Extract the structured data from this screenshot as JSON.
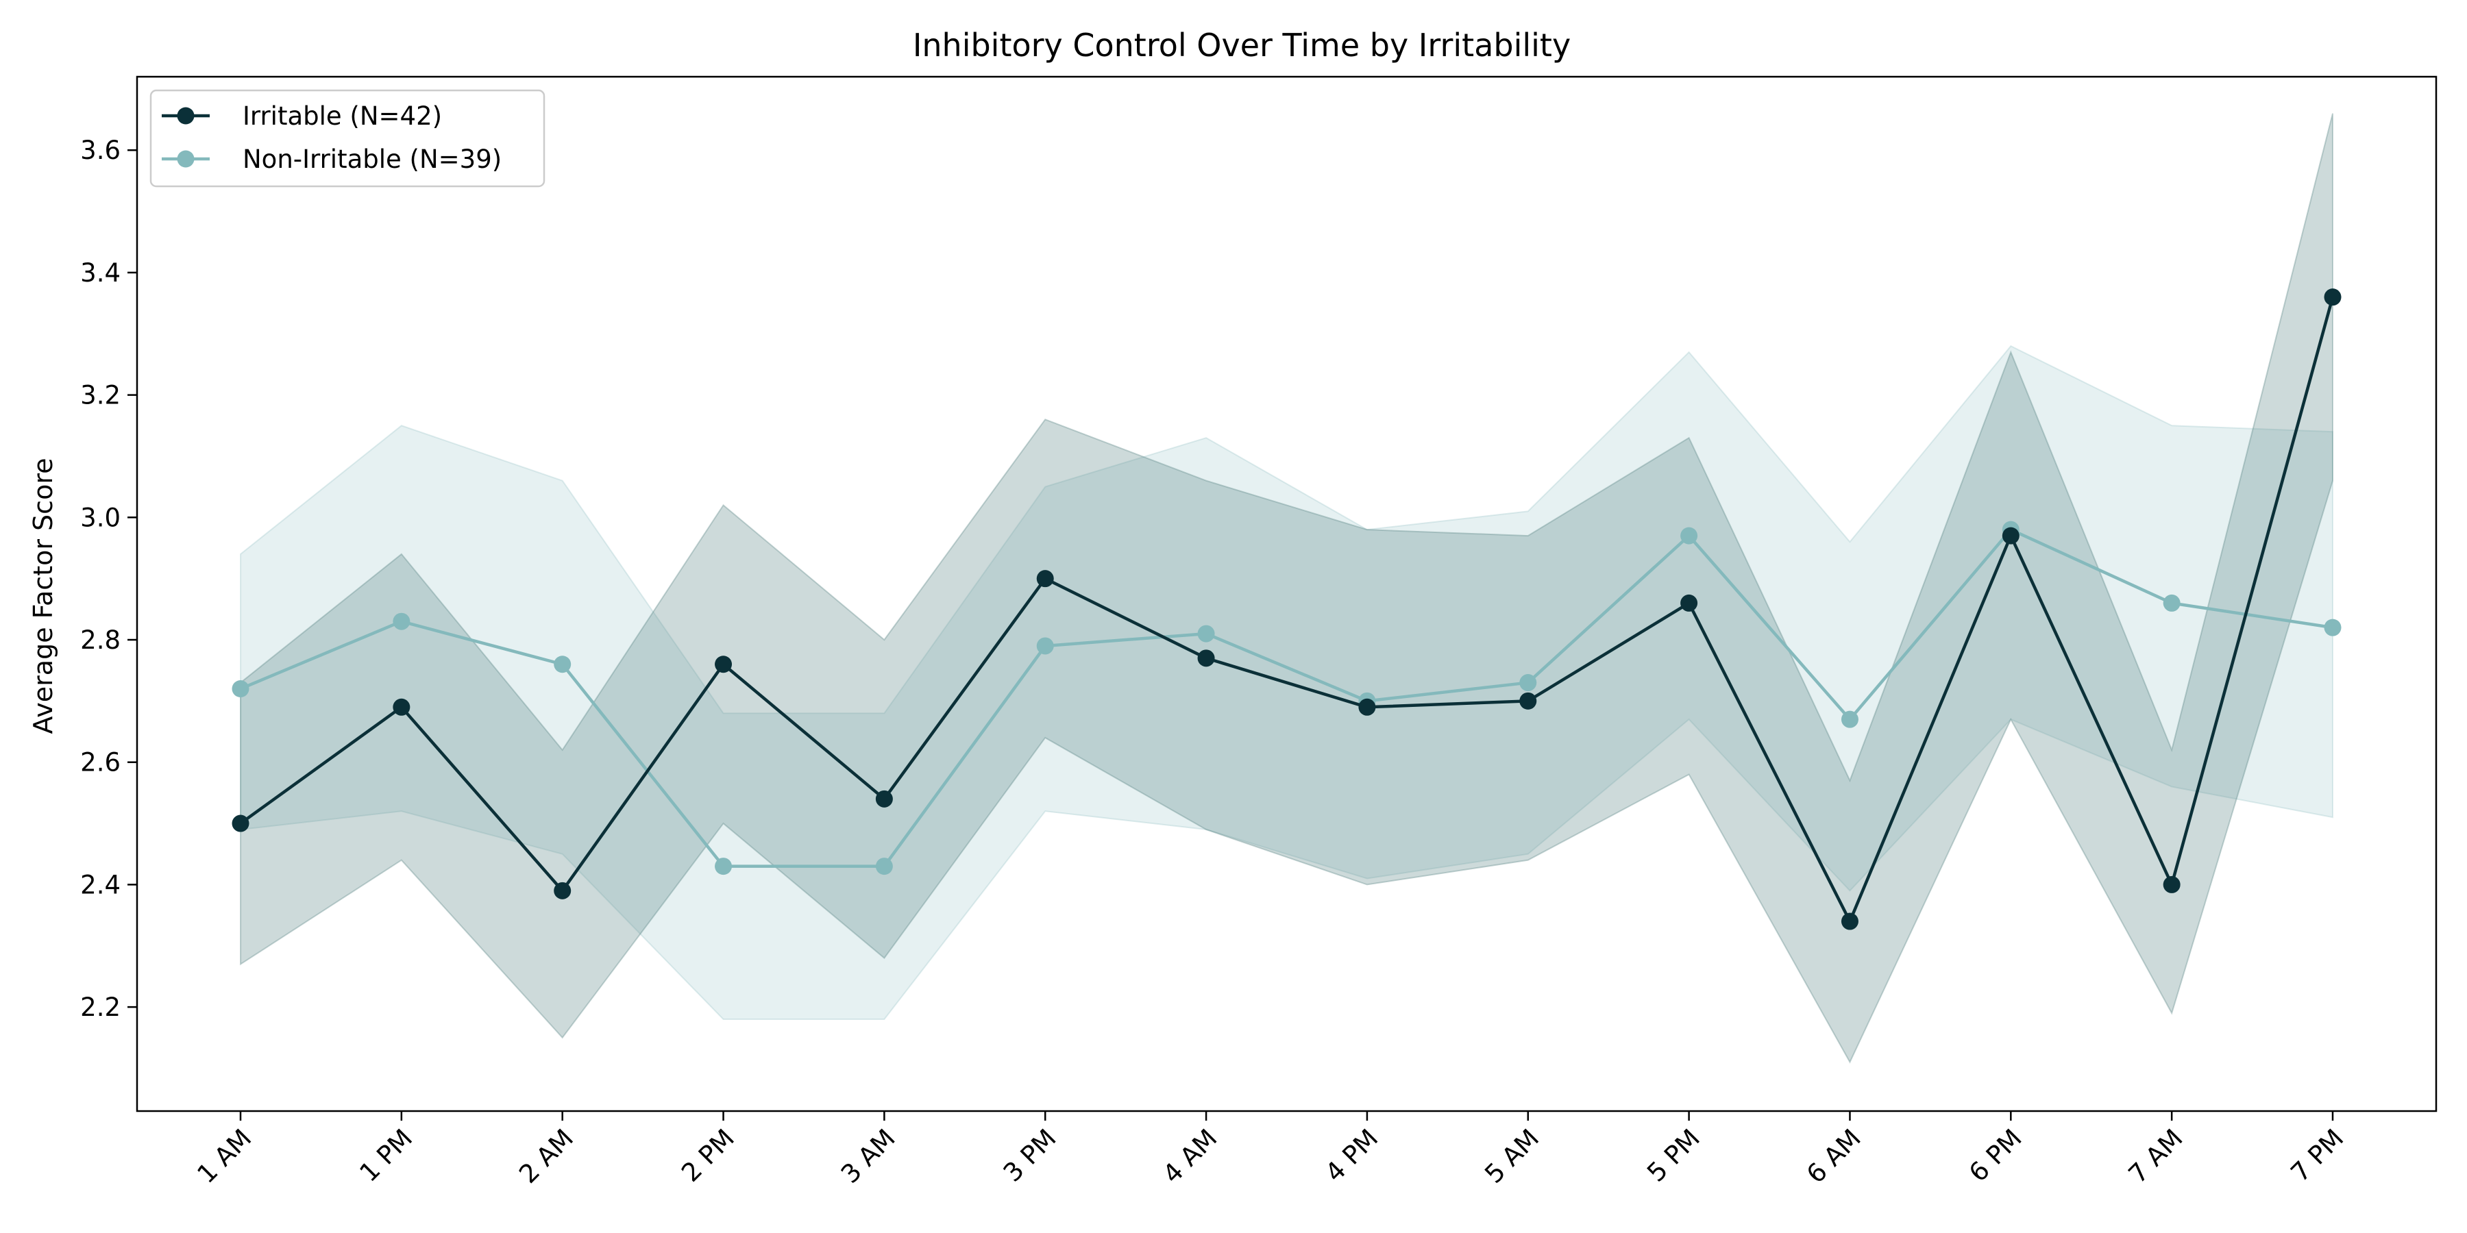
{
  "chart_data": {
    "type": "line",
    "title": "Inhibitory Control Over Time by Irritability",
    "xlabel": "",
    "ylabel": "Average Factor Score",
    "categories": [
      "1 AM",
      "1 PM",
      "2 AM",
      "2 PM",
      "3 AM",
      "3 PM",
      "4 AM",
      "4 PM",
      "5 AM",
      "5 PM",
      "6 AM",
      "6 PM",
      "7 AM",
      "7 PM"
    ],
    "ylim": [
      2.03,
      3.72
    ],
    "yticks": [
      2.2,
      2.4,
      2.6,
      2.8,
      3.0,
      3.2,
      3.4,
      3.6
    ],
    "grid": false,
    "legend_position": "top-left",
    "series": [
      {
        "name": "Irritable (N=42)",
        "color": "#0b3038",
        "values": [
          2.5,
          2.69,
          2.39,
          2.76,
          2.54,
          2.9,
          2.77,
          2.69,
          2.7,
          2.86,
          2.34,
          2.97,
          2.4,
          3.36
        ],
        "band_lower": [
          2.27,
          2.44,
          2.15,
          2.5,
          2.28,
          2.64,
          2.49,
          2.4,
          2.44,
          2.58,
          2.11,
          2.67,
          2.19,
          3.06
        ],
        "band_upper": [
          2.73,
          2.94,
          2.62,
          3.02,
          2.8,
          3.16,
          3.06,
          2.98,
          2.97,
          3.13,
          2.57,
          3.27,
          2.62,
          3.66
        ]
      },
      {
        "name": "Non-Irritable (N=39)",
        "color": "#84b9bc",
        "values": [
          2.72,
          2.83,
          2.76,
          2.43,
          2.43,
          2.79,
          2.81,
          2.7,
          2.73,
          2.97,
          2.67,
          2.98,
          2.86,
          2.82
        ],
        "band_lower": [
          2.49,
          2.52,
          2.45,
          2.18,
          2.18,
          2.52,
          2.49,
          2.41,
          2.45,
          2.67,
          2.39,
          2.67,
          2.56,
          2.51
        ],
        "band_upper": [
          2.94,
          3.15,
          3.06,
          2.68,
          2.68,
          3.05,
          3.13,
          2.98,
          3.01,
          3.27,
          2.96,
          3.28,
          3.15,
          3.14
        ]
      }
    ]
  }
}
